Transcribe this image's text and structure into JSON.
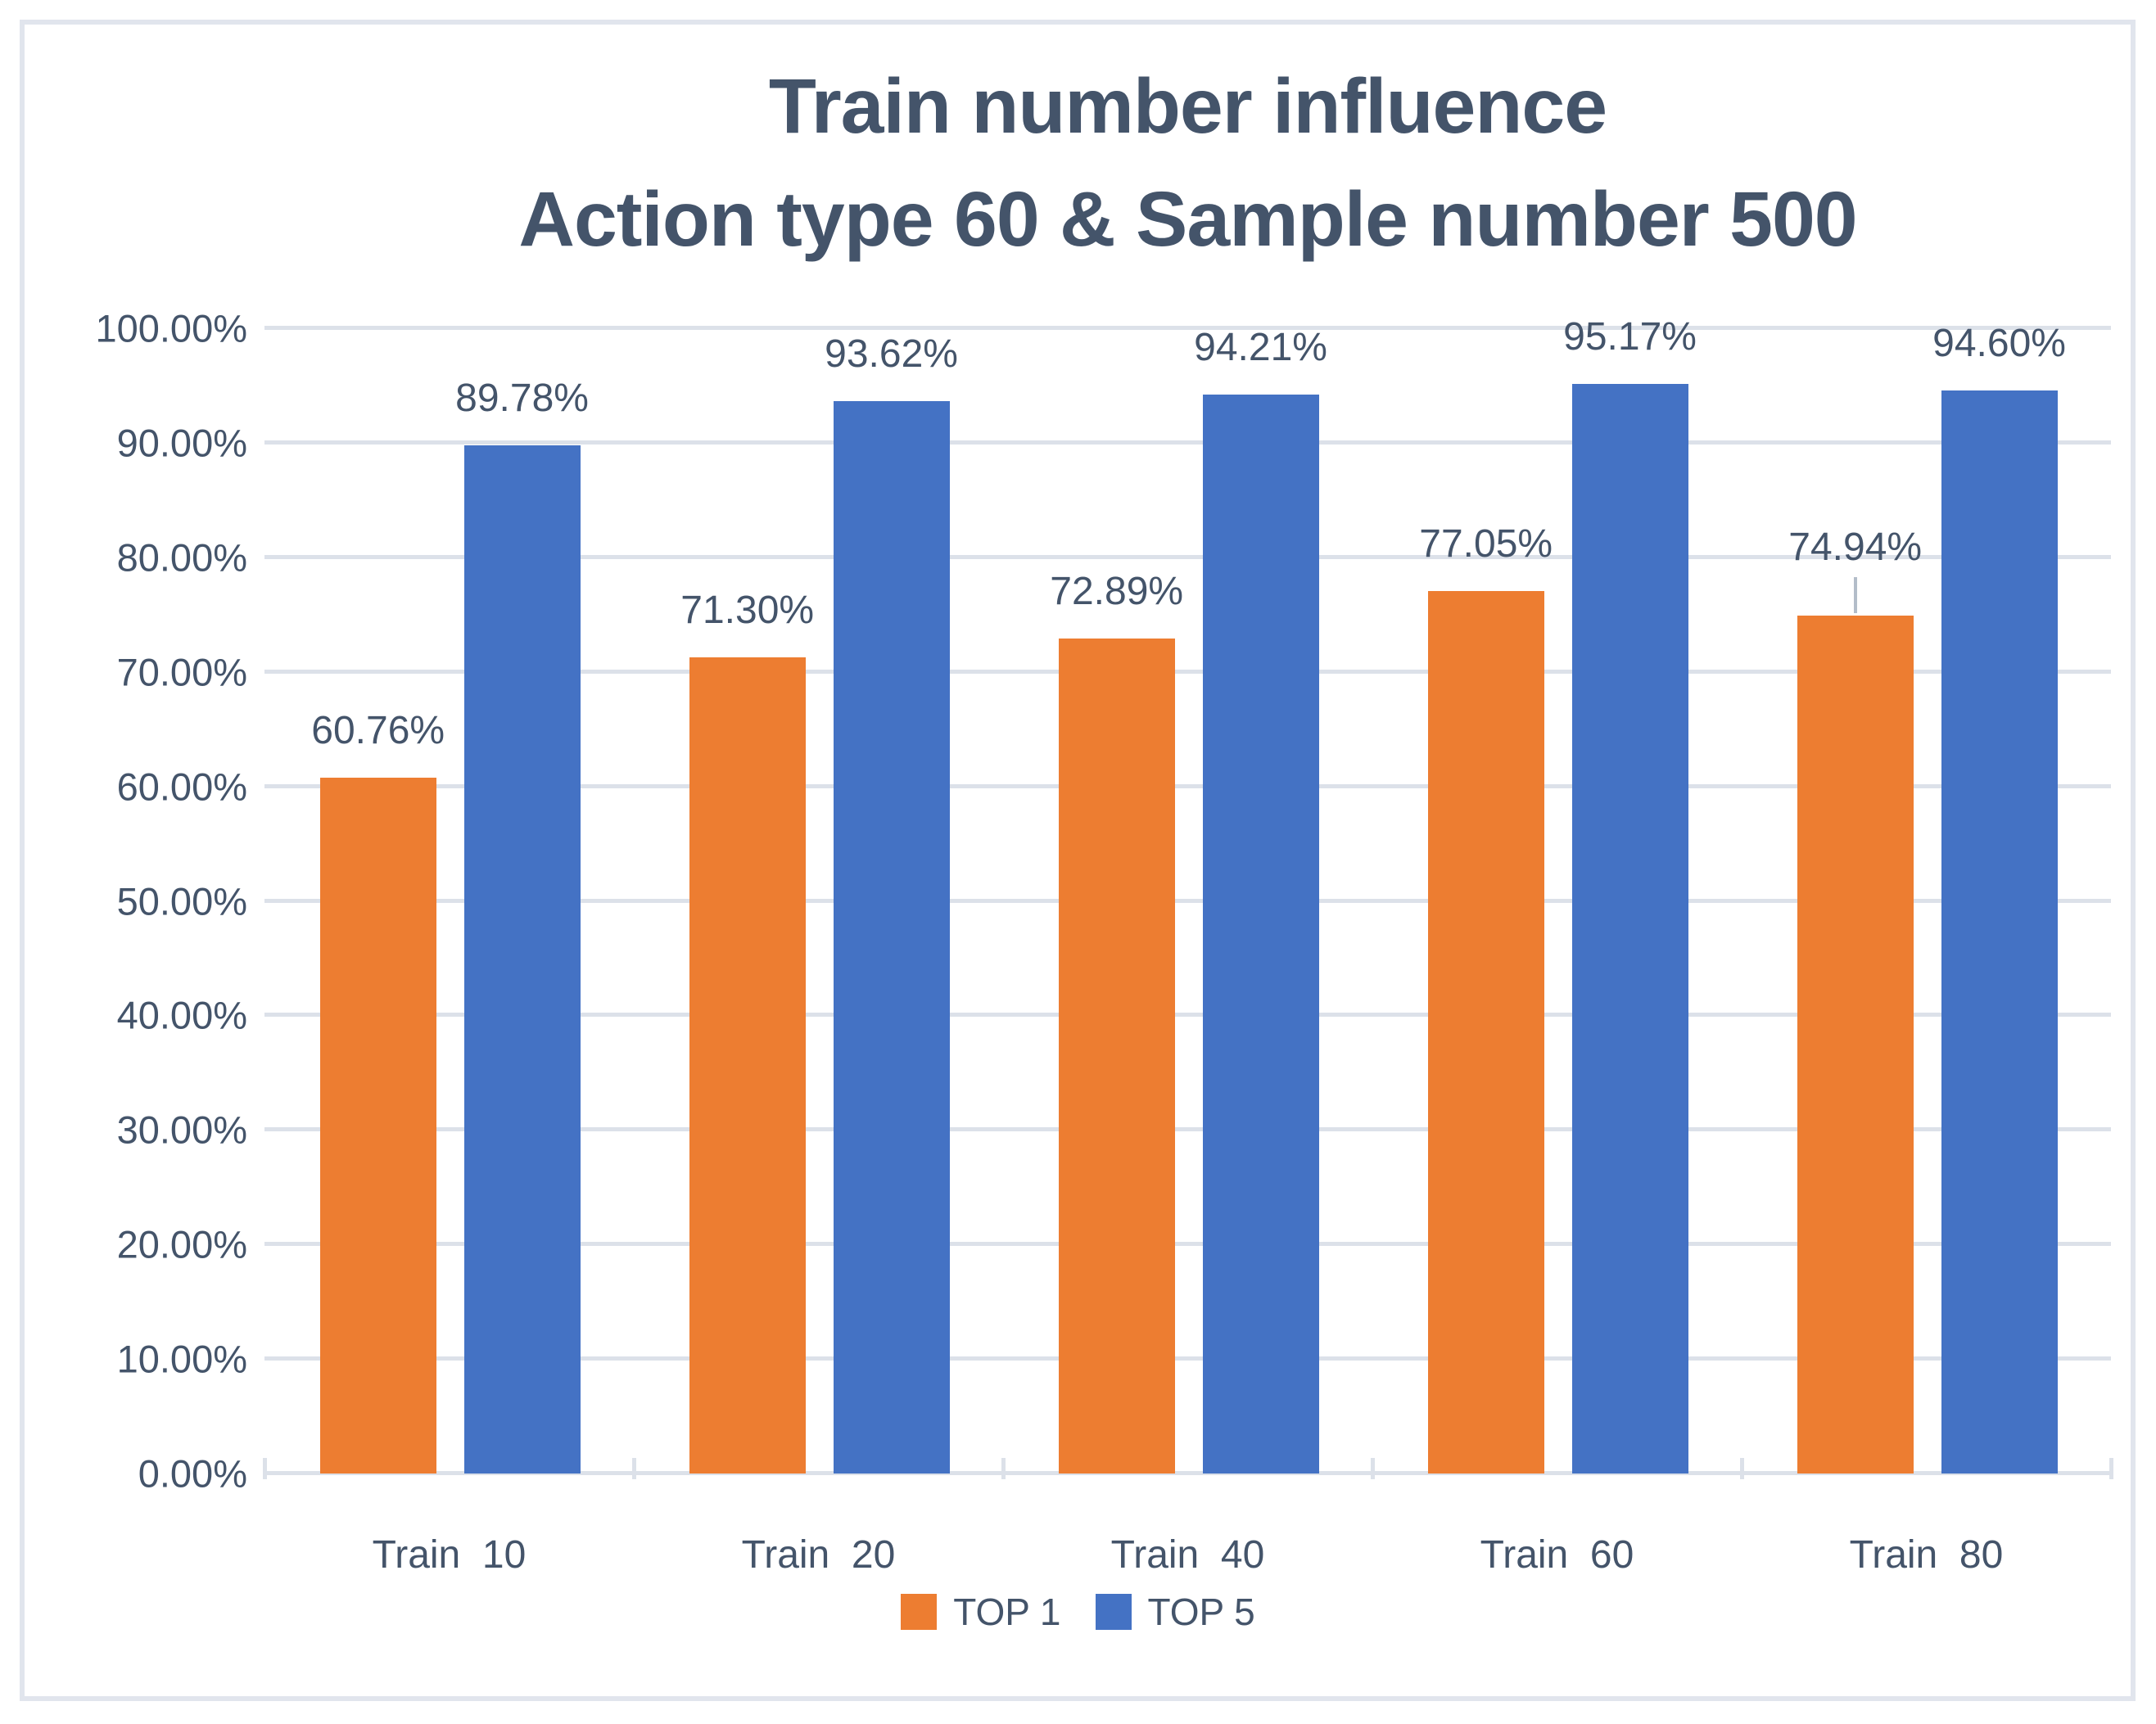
{
  "chart_data": {
    "type": "bar",
    "title_lines": [
      "Train number influence",
      "Action type 60 & Sample number 500"
    ],
    "categories": [
      "Train  10",
      "Train  20",
      "Train  40",
      "Train  60",
      "Train  80"
    ],
    "series": [
      {
        "name": "TOP 1",
        "color": "#ED7D31",
        "values": [
          60.76,
          71.3,
          72.89,
          77.05,
          74.94
        ],
        "labels": [
          "60.76%",
          "71.30%",
          "72.89%",
          "77.05%",
          "74.94%"
        ]
      },
      {
        "name": "TOP 5",
        "color": "#4472C4",
        "values": [
          89.78,
          93.62,
          94.21,
          95.17,
          94.6
        ],
        "labels": [
          "89.78%",
          "93.62%",
          "94.21%",
          "95.17%",
          "94.60%"
        ]
      }
    ],
    "label_leader_lines": [
      {
        "series_index": 0,
        "category_index": 4
      }
    ],
    "y_axis": {
      "min": 0,
      "max": 100,
      "step": 10,
      "tick_labels": [
        "0.00%",
        "10.00%",
        "20.00%",
        "30.00%",
        "40.00%",
        "50.00%",
        "60.00%",
        "70.00%",
        "80.00%",
        "90.00%",
        "100.00%"
      ]
    },
    "legend": {
      "position": "bottom",
      "items": [
        "TOP 1",
        "TOP 5"
      ]
    },
    "gridlines": true,
    "colors": {
      "title_text": "#44546A",
      "axis_text": "#44546A",
      "gridline": "#dce1e9",
      "frame_border": "#e1e5ed",
      "leader_line": "#b3bdc9",
      "background": "#ffffff"
    }
  }
}
